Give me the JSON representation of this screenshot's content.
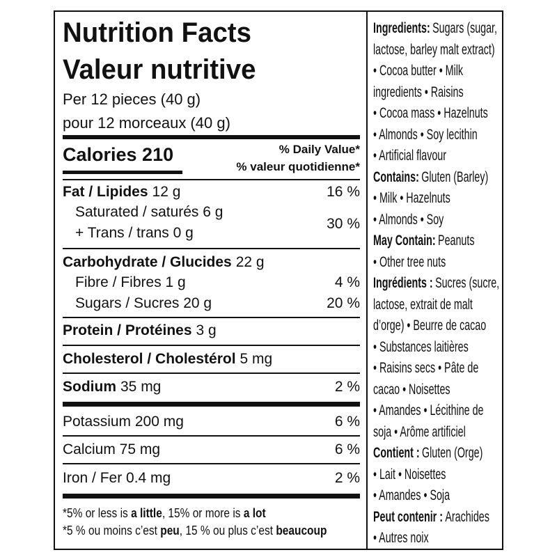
{
  "label": {
    "title_en": "Nutrition Facts",
    "title_fr": "Valeur nutritive",
    "serving_en": "Per 12 pieces (40 g)",
    "serving_fr": "pour 12 morceaux (40 g)",
    "calories": "Calories 210",
    "dv_en": "% Daily Value*",
    "dv_fr": "% valeur quotidienne*",
    "fat": {
      "label": "Fat / Lipides",
      "amount": "12 g",
      "dv": "16 %"
    },
    "saturated": "Saturated / saturés 6 g",
    "trans": "+ Trans / trans 0 g",
    "sat_trans_dv": "30 %",
    "carbohydrate": {
      "label": "Carbohydrate / Glucides",
      "amount": "22 g"
    },
    "fibre": {
      "label": "Fibre / Fibres 1 g",
      "dv": "4 %"
    },
    "sugars": {
      "label": "Sugars / Sucres 20 g",
      "dv": "20 %"
    },
    "protein": {
      "label": "Protein / Protéines",
      "amount": "3 g"
    },
    "cholesterol": {
      "label": "Cholesterol / Cholestérol",
      "amount": "5 mg"
    },
    "sodium": {
      "label": "Sodium",
      "amount": "35 mg",
      "dv": "2 %"
    },
    "potassium": {
      "label": "Potassium 200 mg",
      "dv": "6 %"
    },
    "calcium": {
      "label": "Calcium 75 mg",
      "dv": "6 %"
    },
    "iron": {
      "label": "Iron / Fer 0.4 mg",
      "dv": "2 %"
    },
    "footnote": [
      [
        "*5% or less is ",
        "a little",
        ", 15% or more is ",
        "a lot"
      ],
      [
        "*5 % ou moins c’est ",
        "peu",
        ", 15 % ou plus c’est ",
        "beaucoup"
      ]
    ]
  },
  "ingredients": {
    "lines": [
      {
        "heading": "Ingredients:",
        "text": "Sugars (sugar,"
      },
      {
        "text": "lactose, barley malt extract)"
      },
      {
        "text": "• Cocoa butter • Milk"
      },
      {
        "text": "ingredients • Raisins"
      },
      {
        "text": "• Cocoa mass • Hazelnuts"
      },
      {
        "text": "• Almonds • Soy lecithin"
      },
      {
        "text": "• Artificial flavour"
      },
      {
        "heading": "Contains:",
        "text": "Gluten (Barley)"
      },
      {
        "text": "• Milk • Hazelnuts"
      },
      {
        "text": "• Almonds • Soy"
      },
      {
        "heading": "May Contain:",
        "text": "Peanuts"
      },
      {
        "text": "• Other tree nuts"
      },
      {
        "heading": "Ingrédients :",
        "text": "Sucres (sucre,"
      },
      {
        "text": "lactose, extrait de malt"
      },
      {
        "text": "d’orge) • Beurre de cacao"
      },
      {
        "text": "• Substances laitières"
      },
      {
        "text": "• Raisins secs • Pâte de"
      },
      {
        "text": "cacao • Noisettes"
      },
      {
        "text": "• Amandes • Lécithine de"
      },
      {
        "text": "soja • Arôme artificiel"
      },
      {
        "heading": "Contient :",
        "text": "Gluten (Orge)"
      },
      {
        "text": "• Lait • Noisettes"
      },
      {
        "text": "• Amandes • Soja"
      },
      {
        "heading": "Peut contenir :",
        "text": "Arachides"
      },
      {
        "text": "• Autres noix"
      }
    ]
  }
}
